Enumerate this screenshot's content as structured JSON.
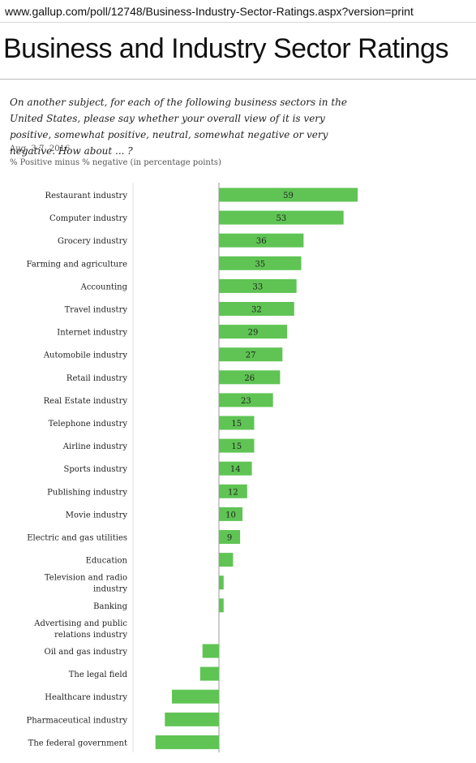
{
  "browser": {
    "url": "www.gallup.com/poll/12748/Business-Industry-Sector-Ratings.aspx?version=print"
  },
  "page": {
    "title": "Business and Industry Sector Ratings",
    "question": "On another subject, for each of the following business sectors in the United States, please say whether your overall view of it is very positive, somewhat positive, neutral, somewhat negative or very negative. How about ... ?",
    "date": "Aug. 3-7, 2016",
    "subtitle": "% Positive minus % negative (in percentage points)"
  },
  "chart_data": {
    "type": "bar",
    "orientation": "horizontal",
    "categories": [
      "Restaurant industry",
      "Computer industry",
      "Grocery industry",
      "Farming and agriculture",
      "Accounting",
      "Travel industry",
      "Internet industry",
      "Automobile industry",
      "Retail industry",
      "Real Estate industry",
      "Telephone industry",
      "Airline industry",
      "Sports industry",
      "Publishing industry",
      "Movie industry",
      "Electric and gas utilities",
      "Education",
      "Television and radio industry",
      "Banking",
      "Advertising and public relations industry",
      "Oil and gas industry",
      "The legal field",
      "Healthcare industry",
      "Pharmaceutical industry",
      "The federal government"
    ],
    "values": [
      59,
      53,
      36,
      35,
      33,
      32,
      29,
      27,
      26,
      23,
      15,
      15,
      14,
      12,
      10,
      9,
      6,
      2,
      2,
      0,
      -7,
      -8,
      -20,
      -23,
      -27
    ],
    "labels": [
      "59",
      "53",
      "36",
      "35",
      "33",
      "32",
      "29",
      "27",
      "26",
      "23",
      "15",
      "15",
      "14",
      "12",
      "10",
      "9",
      "",
      "",
      "",
      "",
      "",
      "",
      "",
      "",
      ""
    ],
    "xlim": [
      -35,
      60
    ],
    "bar_color": "#5fc454",
    "axis_color": "#999999"
  }
}
